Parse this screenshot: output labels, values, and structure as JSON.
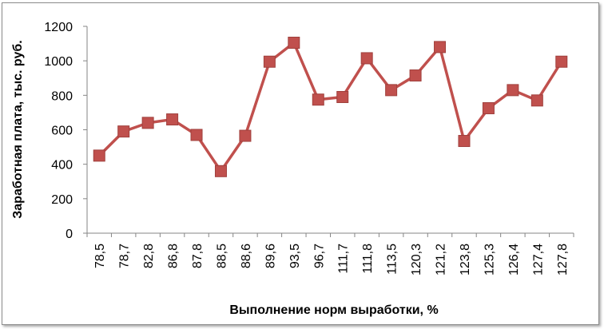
{
  "chart_data": {
    "type": "line",
    "title": "",
    "xlabel": "Выполнение норм выработки,  %",
    "ylabel": "Заработная плата, тыс. руб.",
    "categories": [
      "78,5",
      "78,7",
      "82,8",
      "86,8",
      "87,8",
      "88,5",
      "88,6",
      "89,6",
      "93,5",
      "96,7",
      "111,7",
      "111,8",
      "113,5",
      "120,3",
      "121,2",
      "123,8",
      "125,3",
      "126,4",
      "127,4",
      "127,8"
    ],
    "series": [
      {
        "values": [
          450,
          590,
          640,
          660,
          570,
          360,
          565,
          995,
          1105,
          775,
          790,
          1015,
          830,
          915,
          1080,
          535,
          725,
          830,
          770,
          995
        ]
      }
    ],
    "ylim": [
      0,
      1200
    ],
    "yticks": [
      0,
      200,
      400,
      600,
      800,
      1000,
      1200
    ],
    "grid": false,
    "legend": "none",
    "colors": {
      "series": "#c0504d",
      "marker_fill": "#c0504d",
      "marker_edge": "#a0403d",
      "axis": "#868686"
    }
  }
}
